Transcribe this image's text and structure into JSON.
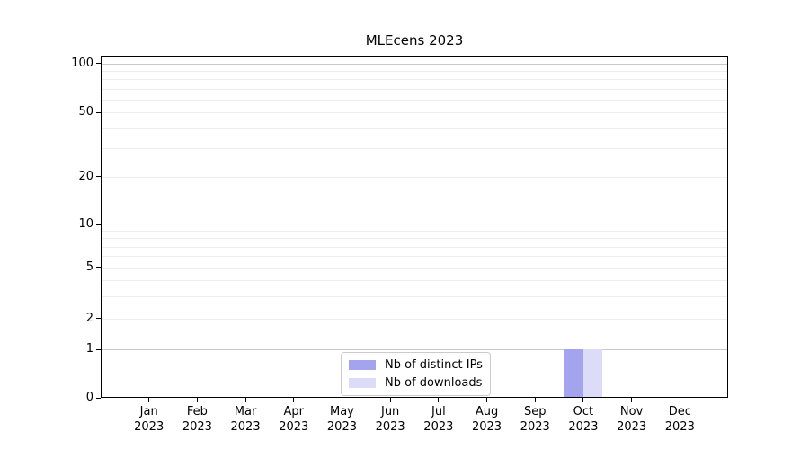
{
  "chart_data": {
    "type": "bar",
    "title": "MLEcens 2023",
    "categories": [
      "Jan 2023",
      "Feb 2023",
      "Mar 2023",
      "Apr 2023",
      "May 2023",
      "Jun 2023",
      "Jul 2023",
      "Aug 2023",
      "Sep 2023",
      "Oct 2023",
      "Nov 2023",
      "Dec 2023"
    ],
    "series": [
      {
        "name": "Nb of distinct IPs",
        "color": "#a4a4ee",
        "values": [
          0,
          0,
          0,
          0,
          0,
          0,
          0,
          0,
          0,
          1,
          0,
          0
        ]
      },
      {
        "name": "Nb of downloads",
        "color": "#dcdcf8",
        "values": [
          0,
          0,
          0,
          0,
          0,
          0,
          0,
          0,
          0,
          1,
          0,
          0
        ]
      }
    ],
    "xlabel": "",
    "ylabel": "",
    "yaxis": {
      "scale": "symlog",
      "tick_values": [
        0,
        1,
        2,
        5,
        10,
        20,
        50,
        100
      ],
      "tick_labels": [
        "0",
        "1",
        "2",
        "5",
        "10",
        "20",
        "50",
        "100"
      ],
      "range": [
        0,
        112
      ]
    },
    "grid": true,
    "legend_position": "lower-center-inside"
  },
  "colors": {
    "background": "#ffffff",
    "spine": "#000000",
    "text": "#000000",
    "major_grid": "#c8c8c8",
    "minor_grid": "#ededed",
    "legend_border": "#cbcbcb"
  }
}
